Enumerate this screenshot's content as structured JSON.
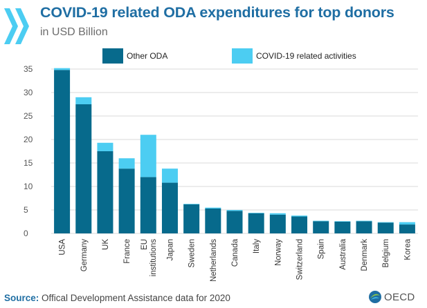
{
  "header": {
    "title": "COVID-19 related ODA expenditures for top donors",
    "subtitle": "in USD Billion"
  },
  "footer": {
    "source_label": "Source:",
    "source_text": "Offical Development Assistance data for 2020",
    "logo_text": "OECD"
  },
  "colors": {
    "other_oda": "#076a8c",
    "covid": "#4ccdf2",
    "title": "#1f6ea3",
    "grid": "#d9d9d9"
  },
  "chart_data": {
    "type": "bar",
    "stacked": true,
    "title": "COVID-19 related ODA expenditures for top donors",
    "subtitle": "in USD Billion",
    "categories": [
      [
        "USA"
      ],
      [
        "Germany"
      ],
      [
        "UK"
      ],
      [
        "France"
      ],
      [
        "EU",
        "institutions"
      ],
      [
        "Japan"
      ],
      [
        "Sweden"
      ],
      [
        "Netherlands"
      ],
      [
        "Canada"
      ],
      [
        "Italy"
      ],
      [
        "Norway"
      ],
      [
        "Switzerland"
      ],
      [
        "Spain"
      ],
      [
        "Australia"
      ],
      [
        "Denmark"
      ],
      [
        "Belgium"
      ],
      [
        "Korea"
      ]
    ],
    "series": [
      {
        "name": "Other ODA",
        "color": "#076a8c",
        "values": [
          34.8,
          27.5,
          17.5,
          13.8,
          12.0,
          10.8,
          6.2,
          5.3,
          4.8,
          4.3,
          4.0,
          3.6,
          2.6,
          2.5,
          2.6,
          2.3,
          1.9
        ]
      },
      {
        "name": "COVID-19 related activities",
        "color": "#4ccdf2",
        "values": [
          0.4,
          1.5,
          1.8,
          2.2,
          9.0,
          3.0,
          0.1,
          0.2,
          0.2,
          0.1,
          0.3,
          0.2,
          0.1,
          0.1,
          0.1,
          0.1,
          0.5
        ]
      }
    ],
    "yticks": [
      0,
      5,
      10,
      15,
      20,
      25,
      30,
      35
    ],
    "ylim": [
      0,
      35
    ],
    "xlabel": "",
    "ylabel": "",
    "grid": true,
    "legend_position": "top"
  }
}
